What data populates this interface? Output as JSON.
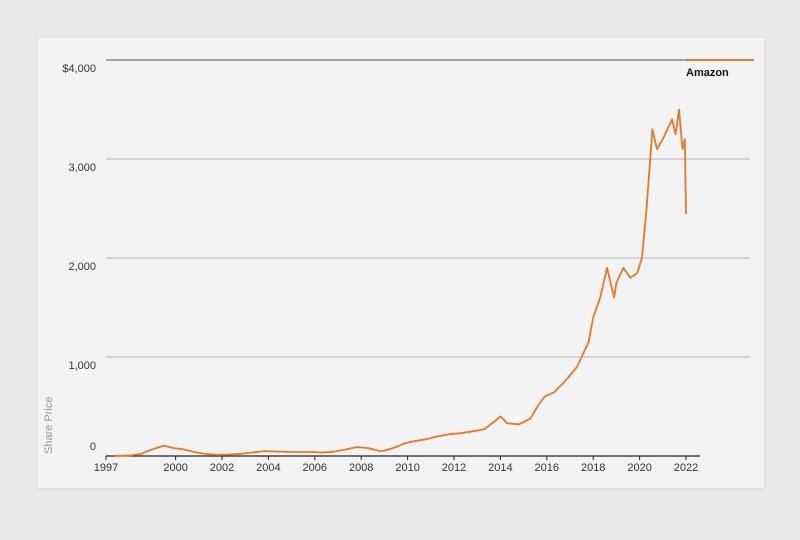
{
  "chart_data": {
    "type": "line",
    "title": "",
    "xlabel": "",
    "ylabel": "Share Price",
    "ylim": [
      0,
      4000
    ],
    "xlim": [
      1997,
      2022
    ],
    "y_ticks": [
      {
        "value": 4000,
        "label": "$4,000"
      },
      {
        "value": 3000,
        "label": "3,000"
      },
      {
        "value": 2000,
        "label": "2,000"
      },
      {
        "value": 1000,
        "label": "1,000"
      },
      {
        "value": 0,
        "label": "0"
      }
    ],
    "x_ticks": [
      "1997",
      "2000",
      "2002",
      "2004",
      "2006",
      "2008",
      "2010",
      "2012",
      "2014",
      "2016",
      "2018",
      "2020",
      "2022"
    ],
    "grid": true,
    "legend_position": "top-right",
    "colors": {
      "series": "#e8782a",
      "grid": "#b5b5b5",
      "axis": "#222222"
    },
    "series": [
      {
        "name": "Amazon",
        "x": [
          1997.4,
          1998.0,
          1998.5,
          1998.9,
          1999.5,
          1999.9,
          2000.3,
          2000.8,
          2001.3,
          2001.8,
          2002.3,
          2002.8,
          2003.3,
          2003.8,
          2004.3,
          2004.8,
          2005.3,
          2005.8,
          2006.3,
          2006.8,
          2007.3,
          2007.8,
          2008.3,
          2008.8,
          2009.0,
          2009.5,
          2009.9,
          2010.3,
          2010.8,
          2011.3,
          2011.8,
          2012.3,
          2012.8,
          2013.3,
          2013.8,
          2014.0,
          2014.3,
          2014.8,
          2015.3,
          2015.6,
          2015.9,
          2016.3,
          2016.8,
          2017.3,
          2017.8,
          2018.0,
          2018.3,
          2018.6,
          2018.9,
          2019.0,
          2019.3,
          2019.6,
          2019.9,
          2020.1,
          2020.3,
          2020.55,
          2020.75,
          2021.0,
          2021.2,
          2021.4,
          2021.55,
          2021.7,
          2021.85,
          2021.95,
          2022.0
        ],
        "values": [
          2,
          5,
          20,
          60,
          105,
          80,
          70,
          40,
          20,
          12,
          15,
          22,
          35,
          50,
          45,
          42,
          40,
          40,
          35,
          42,
          65,
          90,
          80,
          50,
          55,
          90,
          130,
          150,
          170,
          200,
          220,
          230,
          250,
          270,
          360,
          400,
          330,
          320,
          380,
          500,
          600,
          640,
          760,
          900,
          1150,
          1400,
          1600,
          1900,
          1600,
          1750,
          1900,
          1800,
          1850,
          2000,
          2500,
          3300,
          3100,
          3200,
          3300,
          3400,
          3250,
          3500,
          3100,
          3200,
          2450
        ]
      }
    ]
  }
}
